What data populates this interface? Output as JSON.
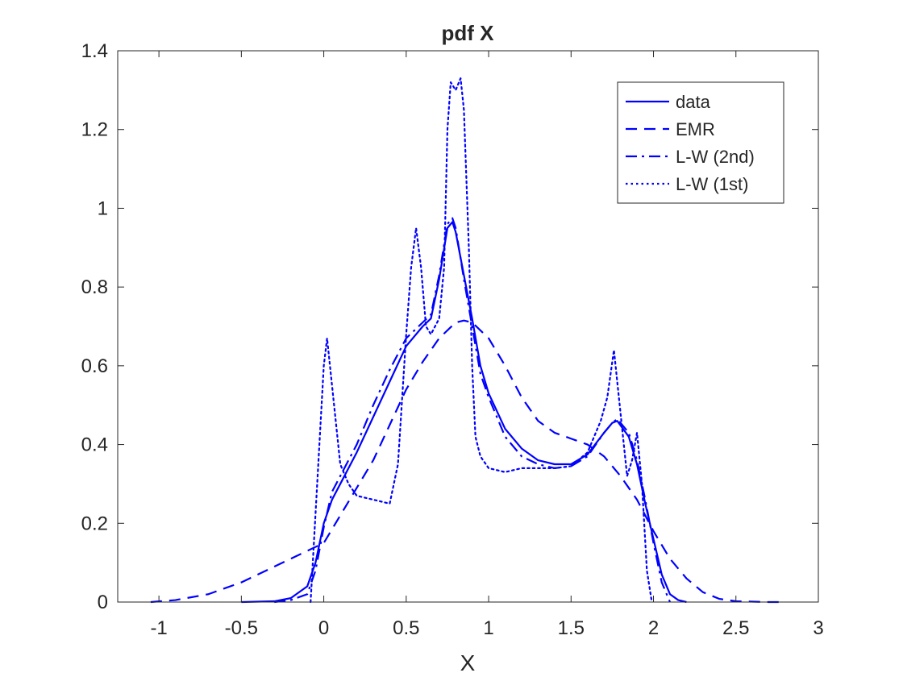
{
  "chart_data": {
    "type": "line",
    "title": "pdf X",
    "xlabel": "X",
    "ylabel": "",
    "xlim": [
      -1.25,
      3
    ],
    "ylim": [
      0,
      1.4
    ],
    "xticks": [
      -1,
      -0.5,
      0,
      0.5,
      1,
      1.5,
      2,
      2.5,
      3
    ],
    "yticks": [
      0,
      0.2,
      0.4,
      0.6,
      0.8,
      1,
      1.2,
      1.4
    ],
    "xtick_labels": [
      "-1",
      "-0.5",
      "0",
      "0.5",
      "1",
      "1.5",
      "2",
      "2.5",
      "3"
    ],
    "ytick_labels": [
      "0",
      "0.2",
      "0.4",
      "0.6",
      "0.8",
      "1",
      "1.2",
      "1.4"
    ],
    "grid": false,
    "legend_position": "top-right",
    "color": "#0000ff",
    "series": [
      {
        "name": "data",
        "style": "solid",
        "x": [
          -0.5,
          -0.3,
          -0.2,
          -0.1,
          -0.05,
          0,
          0.05,
          0.1,
          0.2,
          0.3,
          0.4,
          0.5,
          0.6,
          0.65,
          0.7,
          0.75,
          0.78,
          0.8,
          0.85,
          0.9,
          0.95,
          1.0,
          1.1,
          1.2,
          1.3,
          1.4,
          1.5,
          1.6,
          1.7,
          1.75,
          1.78,
          1.85,
          1.9,
          1.95,
          2.0,
          2.05,
          2.1,
          2.15,
          2.2
        ],
        "y": [
          0,
          0.002,
          0.01,
          0.04,
          0.1,
          0.2,
          0.26,
          0.3,
          0.38,
          0.47,
          0.56,
          0.65,
          0.7,
          0.72,
          0.82,
          0.95,
          0.965,
          0.94,
          0.83,
          0.72,
          0.6,
          0.53,
          0.44,
          0.39,
          0.36,
          0.35,
          0.35,
          0.375,
          0.43,
          0.455,
          0.46,
          0.42,
          0.35,
          0.25,
          0.16,
          0.07,
          0.02,
          0.005,
          0
        ]
      },
      {
        "name": "EMR",
        "style": "dashed",
        "x": [
          -1.05,
          -0.9,
          -0.7,
          -0.5,
          -0.3,
          -0.15,
          0,
          0.1,
          0.2,
          0.3,
          0.4,
          0.5,
          0.6,
          0.7,
          0.8,
          0.85,
          0.9,
          1.0,
          1.1,
          1.2,
          1.3,
          1.4,
          1.5,
          1.6,
          1.7,
          1.8,
          1.9,
          2.0,
          2.1,
          2.2,
          2.3,
          2.4,
          2.5,
          2.7,
          2.8
        ],
        "y": [
          0,
          0.005,
          0.02,
          0.05,
          0.09,
          0.12,
          0.15,
          0.22,
          0.29,
          0.36,
          0.45,
          0.54,
          0.61,
          0.67,
          0.71,
          0.715,
          0.71,
          0.67,
          0.6,
          0.52,
          0.46,
          0.43,
          0.415,
          0.4,
          0.37,
          0.32,
          0.26,
          0.18,
          0.11,
          0.06,
          0.025,
          0.008,
          0.002,
          0,
          0
        ]
      },
      {
        "name": "L-W (2nd)",
        "style": "dashdot",
        "x": [
          -0.3,
          -0.2,
          -0.1,
          -0.05,
          0,
          0.05,
          0.1,
          0.2,
          0.3,
          0.4,
          0.5,
          0.6,
          0.65,
          0.7,
          0.75,
          0.78,
          0.8,
          0.85,
          0.9,
          0.95,
          1.0,
          1.1,
          1.2,
          1.3,
          1.4,
          1.5,
          1.6,
          1.7,
          1.75,
          1.78,
          1.85,
          1.9,
          1.95,
          2.0,
          2.05,
          2.1
        ],
        "y": [
          0,
          0.005,
          0.02,
          0.08,
          0.19,
          0.28,
          0.32,
          0.4,
          0.5,
          0.59,
          0.67,
          0.71,
          0.73,
          0.83,
          0.96,
          0.975,
          0.95,
          0.82,
          0.7,
          0.58,
          0.52,
          0.42,
          0.37,
          0.35,
          0.34,
          0.345,
          0.37,
          0.43,
          0.455,
          0.465,
          0.43,
          0.36,
          0.26,
          0.15,
          0.05,
          0
        ]
      },
      {
        "name": "L-W (1st)",
        "style": "dotted",
        "x": [
          -0.08,
          -0.04,
          0,
          0.02,
          0.05,
          0.1,
          0.15,
          0.2,
          0.3,
          0.4,
          0.45,
          0.5,
          0.53,
          0.56,
          0.59,
          0.62,
          0.65,
          0.7,
          0.73,
          0.75,
          0.77,
          0.8,
          0.83,
          0.85,
          0.88,
          0.9,
          0.92,
          0.95,
          1.0,
          1.1,
          1.2,
          1.3,
          1.4,
          1.5,
          1.6,
          1.68,
          1.72,
          1.76,
          1.8,
          1.84,
          1.87,
          1.9,
          1.93,
          1.96,
          1.99
        ],
        "y": [
          0,
          0.3,
          0.6,
          0.67,
          0.55,
          0.35,
          0.3,
          0.27,
          0.26,
          0.25,
          0.35,
          0.68,
          0.85,
          0.95,
          0.85,
          0.7,
          0.68,
          0.72,
          0.85,
          1.2,
          1.32,
          1.3,
          1.33,
          1.25,
          0.9,
          0.6,
          0.42,
          0.37,
          0.34,
          0.33,
          0.34,
          0.34,
          0.34,
          0.345,
          0.38,
          0.46,
          0.52,
          0.64,
          0.48,
          0.32,
          0.36,
          0.43,
          0.3,
          0.08,
          0
        ]
      }
    ]
  }
}
